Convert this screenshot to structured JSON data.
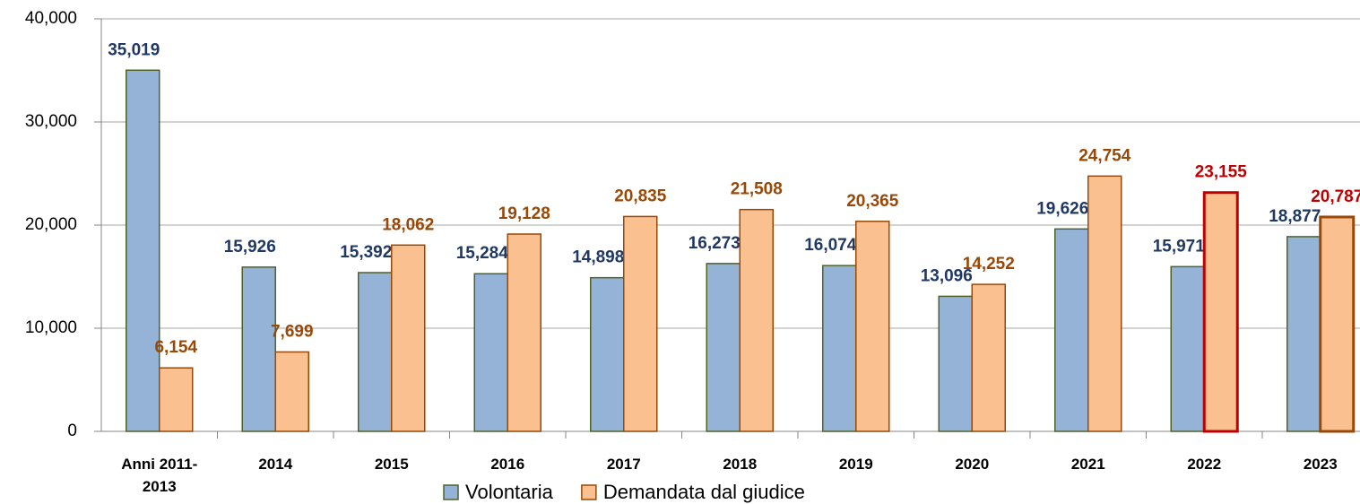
{
  "chart_data": {
    "type": "bar",
    "categories": [
      "Anni 2011-2013",
      "2014",
      "2015",
      "2016",
      "2017",
      "2018",
      "2019",
      "2020",
      "2021",
      "2022",
      "2023"
    ],
    "series": [
      {
        "name": "Volontaria",
        "color": "#95b3d7",
        "edge_color": "#4f6228",
        "label_color": "#1f3864",
        "values": [
          35019,
          15926,
          15392,
          15284,
          14898,
          16273,
          16074,
          13096,
          19626,
          15971,
          18877
        ],
        "value_labels": [
          "35,019",
          "15,926",
          "15,392",
          "15,284",
          "14,898",
          "16,273",
          "16,074",
          "13,096",
          "19,626",
          "15,971",
          "18,877"
        ]
      },
      {
        "name": "Demandata dal giudice",
        "color": "#fac090",
        "edge_color": "#984807",
        "label_color": "#984807",
        "values": [
          6154,
          7699,
          18062,
          19128,
          20835,
          21508,
          20365,
          14252,
          24754,
          23155,
          20787
        ],
        "value_labels": [
          "6,154",
          "7,699",
          "18,062",
          "19,128",
          "20,835",
          "21,508",
          "20,365",
          "14,252",
          "24,754",
          "23,155",
          "20,787"
        ],
        "label_colors": [
          "#984807",
          "#984807",
          "#984807",
          "#984807",
          "#984807",
          "#984807",
          "#984807",
          "#984807",
          "#984807",
          "#c00000",
          "#c00000"
        ],
        "edge_colors": [
          "#984807",
          "#984807",
          "#984807",
          "#984807",
          "#984807",
          "#984807",
          "#984807",
          "#984807",
          "#984807",
          "#c00000",
          "#984807"
        ],
        "edge_widths": [
          1.5,
          1.5,
          1.5,
          1.5,
          1.5,
          1.5,
          1.5,
          1.5,
          1.5,
          3,
          3
        ]
      }
    ],
    "ylim": [
      0,
      40000
    ],
    "yticks": [
      0,
      {
        "value": 10000,
        "label": "10,000"
      },
      {
        "value": 20000,
        "label": "20,000"
      },
      {
        "value": 30000,
        "label": "30,000"
      },
      {
        "value": 40000,
        "label": "40,000"
      }
    ],
    "grid": true,
    "legend": "bottom"
  }
}
